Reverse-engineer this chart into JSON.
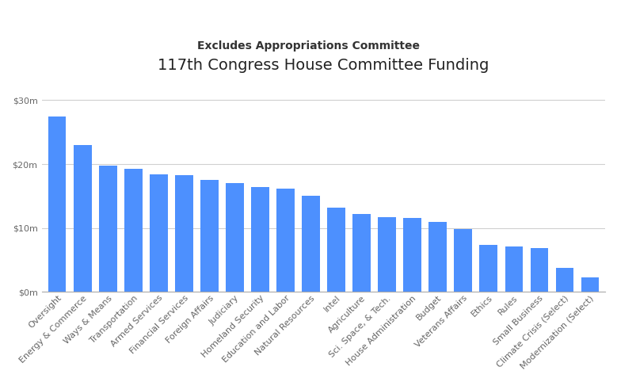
{
  "title": "117th Congress House Committee Funding",
  "subtitle": "Excludes Appropriations Committee",
  "categories": [
    "Oversight",
    "Energy & Commerce",
    "Ways & Means",
    "Transportation",
    "Armed Services",
    "Financial Services",
    "Foreign Affairs",
    "Judiciary",
    "Homeland Security",
    "Education and Labor",
    "Natural Resources",
    "Intel",
    "Agriculture",
    "Sci. Space, & Tech.",
    "House Administration",
    "Budget",
    "Veterans Affairs",
    "Ethics",
    "Rules",
    "Small Business",
    "Climate Crisis (Select)",
    "Modernization (Select)"
  ],
  "values": [
    27500000,
    23000000,
    19800000,
    19300000,
    18400000,
    18300000,
    17500000,
    17000000,
    16400000,
    16200000,
    15000000,
    13200000,
    12200000,
    11700000,
    11500000,
    11000000,
    9800000,
    7300000,
    7100000,
    6900000,
    3800000,
    2200000
  ],
  "bar_color": "#4d90fe",
  "background_color": "#ffffff",
  "grid_color": "#d0d0d0",
  "title_fontsize": 14,
  "subtitle_fontsize": 10,
  "tick_fontsize": 8,
  "ylim": [
    0,
    31000000
  ],
  "yticks": [
    0,
    10000000,
    20000000,
    30000000
  ],
  "ytick_labels": [
    "$0m",
    "$10m",
    "$20m",
    "$30m"
  ]
}
